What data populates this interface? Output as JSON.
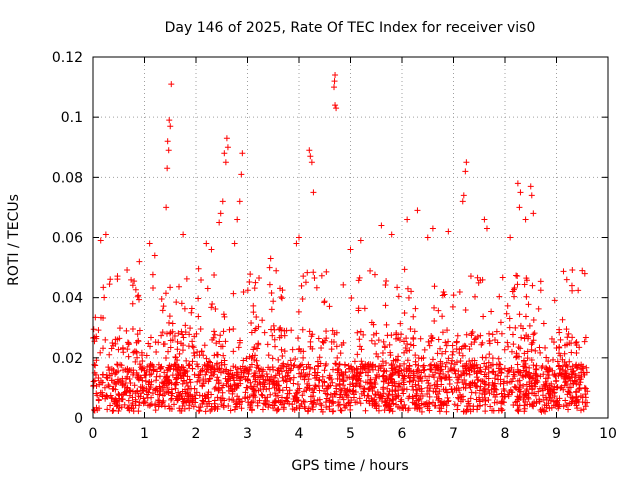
{
  "chart_data": {
    "type": "scatter",
    "title": "Day 146 of 2025, Rate Of TEC Index for receiver vis0",
    "xlabel": "GPS time / hours",
    "ylabel": "ROTI / TECUs",
    "xlim": [
      0,
      10
    ],
    "ylim": [
      0,
      0.12
    ],
    "x_ticks": [
      0,
      1,
      2,
      3,
      4,
      5,
      6,
      7,
      8,
      9,
      10
    ],
    "x_tick_labels": [
      "0",
      "1",
      "2",
      "3",
      "4",
      "5",
      "6",
      "7",
      "8",
      "9",
      "10"
    ],
    "y_ticks": [
      0,
      0.02,
      0.04,
      0.06,
      0.08,
      0.1,
      0.12
    ],
    "y_tick_labels": [
      "0",
      "0.02",
      "0.04",
      "0.06",
      "0.08",
      "0.1",
      "0.12"
    ],
    "grid": true,
    "marker": "+",
    "color": "#ff0000",
    "series": [
      {
        "name": "ROTI",
        "x_range": [
          0,
          9.6
        ],
        "points": [
          [
            1.52,
            0.111
          ],
          [
            1.48,
            0.099
          ],
          [
            1.5,
            0.097
          ],
          [
            1.45,
            0.092
          ],
          [
            1.47,
            0.089
          ],
          [
            1.44,
            0.083
          ],
          [
            1.42,
            0.07
          ],
          [
            2.6,
            0.093
          ],
          [
            2.62,
            0.09
          ],
          [
            2.55,
            0.088
          ],
          [
            2.58,
            0.085
          ],
          [
            2.48,
            0.068
          ],
          [
            2.52,
            0.072
          ],
          [
            2.45,
            0.065
          ],
          [
            2.9,
            0.088
          ],
          [
            2.88,
            0.081
          ],
          [
            2.85,
            0.072
          ],
          [
            2.8,
            0.066
          ],
          [
            2.75,
            0.058
          ],
          [
            4.2,
            0.089
          ],
          [
            4.22,
            0.087
          ],
          [
            4.25,
            0.085
          ],
          [
            4.28,
            0.075
          ],
          [
            4.7,
            0.114
          ],
          [
            4.69,
            0.112
          ],
          [
            4.68,
            0.11
          ],
          [
            4.7,
            0.104
          ],
          [
            4.72,
            0.103
          ],
          [
            7.25,
            0.085
          ],
          [
            7.23,
            0.082
          ],
          [
            7.2,
            0.074
          ],
          [
            7.18,
            0.072
          ],
          [
            8.25,
            0.078
          ],
          [
            8.3,
            0.075
          ],
          [
            8.5,
            0.077
          ],
          [
            8.52,
            0.074
          ],
          [
            8.4,
            0.066
          ],
          [
            8.28,
            0.07
          ],
          [
            8.55,
            0.068
          ],
          [
            3.45,
            0.053
          ],
          [
            3.43,
            0.05
          ],
          [
            4.0,
            0.06
          ],
          [
            3.95,
            0.058
          ],
          [
            5.2,
            0.059
          ],
          [
            5.0,
            0.056
          ],
          [
            6.3,
            0.069
          ],
          [
            6.1,
            0.066
          ],
          [
            6.6,
            0.063
          ],
          [
            6.9,
            0.062
          ],
          [
            7.6,
            0.066
          ],
          [
            7.65,
            0.063
          ],
          [
            0.25,
            0.061
          ],
          [
            0.15,
            0.059
          ],
          [
            0.9,
            0.052
          ],
          [
            1.1,
            0.058
          ],
          [
            1.2,
            0.054
          ],
          [
            1.75,
            0.061
          ],
          [
            2.2,
            0.058
          ],
          [
            2.3,
            0.056
          ],
          [
            5.6,
            0.064
          ],
          [
            5.8,
            0.061
          ],
          [
            6.5,
            0.06
          ],
          [
            8.1,
            0.06
          ],
          [
            9.5,
            0.049
          ],
          [
            9.55,
            0.048
          ],
          [
            9.2,
            0.046
          ],
          [
            9.3,
            0.044
          ]
        ]
      }
    ]
  }
}
